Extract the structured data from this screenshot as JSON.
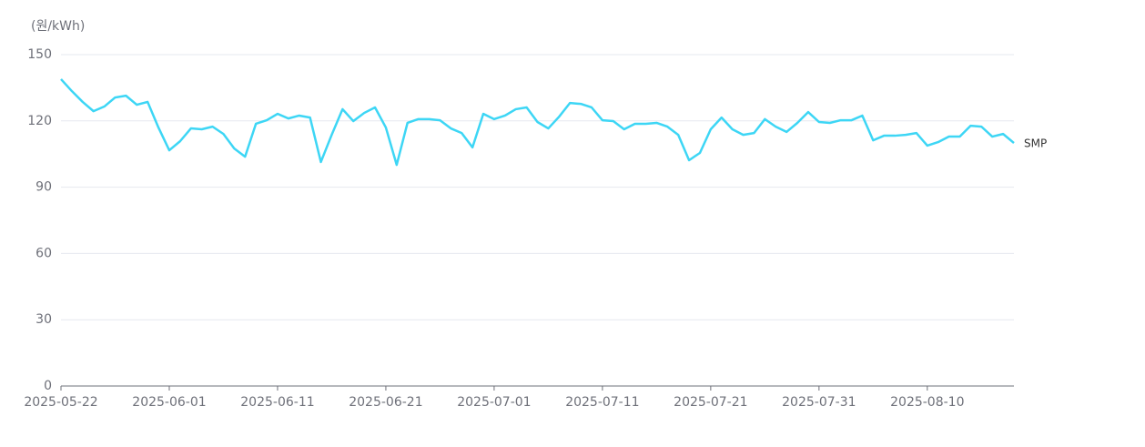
{
  "chart_data": {
    "type": "line",
    "y_axis_label": "(원/kWh)",
    "x": [
      "2025-05-22",
      "2025-05-23",
      "2025-05-24",
      "2025-05-25",
      "2025-05-26",
      "2025-05-27",
      "2025-05-28",
      "2025-05-29",
      "2025-05-30",
      "2025-05-31",
      "2025-06-01",
      "2025-06-02",
      "2025-06-03",
      "2025-06-04",
      "2025-06-05",
      "2025-06-06",
      "2025-06-07",
      "2025-06-08",
      "2025-06-09",
      "2025-06-10",
      "2025-06-11",
      "2025-06-12",
      "2025-06-13",
      "2025-06-14",
      "2025-06-15",
      "2025-06-16",
      "2025-06-17",
      "2025-06-18",
      "2025-06-19",
      "2025-06-20",
      "2025-06-21",
      "2025-06-22",
      "2025-06-23",
      "2025-06-24",
      "2025-06-25",
      "2025-06-26",
      "2025-06-27",
      "2025-06-28",
      "2025-06-29",
      "2025-06-30",
      "2025-07-01",
      "2025-07-02",
      "2025-07-03",
      "2025-07-04",
      "2025-07-05",
      "2025-07-06",
      "2025-07-07",
      "2025-07-08",
      "2025-07-09",
      "2025-07-10",
      "2025-07-11",
      "2025-07-12",
      "2025-07-13",
      "2025-07-14",
      "2025-07-15",
      "2025-07-16",
      "2025-07-17",
      "2025-07-18",
      "2025-07-19",
      "2025-07-20",
      "2025-07-21",
      "2025-07-22",
      "2025-07-23",
      "2025-07-24",
      "2025-07-25",
      "2025-07-26",
      "2025-07-27",
      "2025-07-28",
      "2025-07-29",
      "2025-07-30",
      "2025-07-31",
      "2025-08-01",
      "2025-08-02",
      "2025-08-03",
      "2025-08-04",
      "2025-08-05",
      "2025-08-06",
      "2025-08-07",
      "2025-08-08",
      "2025-08-09",
      "2025-08-10",
      "2025-08-11",
      "2025-08-12",
      "2025-08-13",
      "2025-08-14",
      "2025-08-15",
      "2025-08-16",
      "2025-08-17",
      "2025-08-18"
    ],
    "series": [
      {
        "name": "SMP",
        "color": "#3dd6f5",
        "values": [
          138.9,
          133.5,
          128.6,
          124.4,
          126.5,
          130.6,
          131.4,
          127.3,
          128.6,
          117,
          106.7,
          110.8,
          116.6,
          116.2,
          117.4,
          114.1,
          107.5,
          103.8,
          118.7,
          120.3,
          123.2,
          121.1,
          122.4,
          121.5,
          101.4,
          113.7,
          125.3,
          119.9,
          123.6,
          126.1,
          117,
          100.1,
          119.1,
          120.8,
          120.8,
          120.3,
          116.6,
          114.5,
          108,
          123.2,
          120.8,
          122.4,
          125.3,
          126.1,
          119.5,
          116.6,
          121.9,
          128.1,
          127.7,
          126.1,
          120.3,
          119.9,
          116.2,
          118.7,
          118.7,
          119.1,
          117.4,
          113.7,
          102.2,
          105.5,
          116.2,
          121.5,
          116.2,
          113.7,
          114.5,
          120.8,
          117.4,
          115,
          119.1,
          124,
          119.5,
          119.1,
          120.3,
          120.3,
          122.4,
          111.2,
          113.3,
          113.3,
          113.7,
          114.5,
          108.8,
          110.4,
          112.9,
          112.9,
          117.8,
          117.4,
          112.9,
          114.1,
          110
        ]
      }
    ],
    "xlim": [
      "2025-05-22",
      "2025-08-18"
    ],
    "xticks": [
      "2025-05-22",
      "2025-06-01",
      "2025-06-11",
      "2025-06-21",
      "2025-07-01",
      "2025-07-11",
      "2025-07-21",
      "2025-07-31",
      "2025-08-10"
    ],
    "ylim": [
      0,
      150
    ],
    "yticks": [
      0,
      30,
      60,
      90,
      120,
      150
    ],
    "grid": true
  }
}
